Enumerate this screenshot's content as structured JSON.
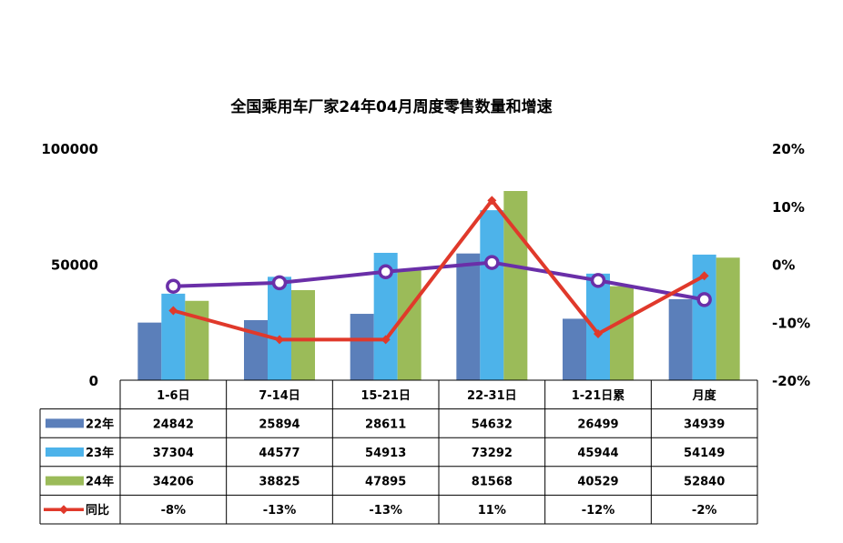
{
  "chart_data": {
    "type": "bar",
    "title": "全国乘用车厂家24年04月周度零售数量和增速",
    "categories": [
      "1-6日",
      "7-14日",
      "15-21日",
      "22-31日",
      "1-21日累",
      "月度"
    ],
    "series": [
      {
        "name": "22年",
        "color": "#5b7fba",
        "values": [
          24842,
          25894,
          28611,
          54632,
          26499,
          34939
        ]
      },
      {
        "name": "23年",
        "color": "#4db3ea",
        "values": [
          37304,
          44577,
          54913,
          73292,
          45944,
          54149
        ]
      },
      {
        "name": "24年",
        "color": "#9bbb59",
        "values": [
          34206,
          38825,
          47895,
          81568,
          40529,
          52840
        ]
      }
    ],
    "line_series": [
      {
        "name": "同比",
        "color": "#e0392b",
        "marker": "diamond",
        "values": [
          -8,
          -13,
          -13,
          11,
          -12,
          -2
        ],
        "labels": [
          "-8%",
          "-13%",
          "-13%",
          "11%",
          "-12%",
          "-2%"
        ]
      },
      {
        "color": "#6a2fa8",
        "marker": "open-circle",
        "values": [
          -3.8,
          -3.2,
          -1.3,
          0.3,
          -2.8,
          -6.1
        ]
      }
    ],
    "y_left": {
      "ticks": [
        "0",
        "50000",
        "100000"
      ],
      "range": [
        0,
        100000
      ]
    },
    "y_right": {
      "ticks": [
        "-20%",
        "-10%",
        "0%",
        "10%",
        "20%"
      ],
      "range": [
        -20,
        20
      ]
    },
    "grid": false,
    "legend": "data-table"
  }
}
